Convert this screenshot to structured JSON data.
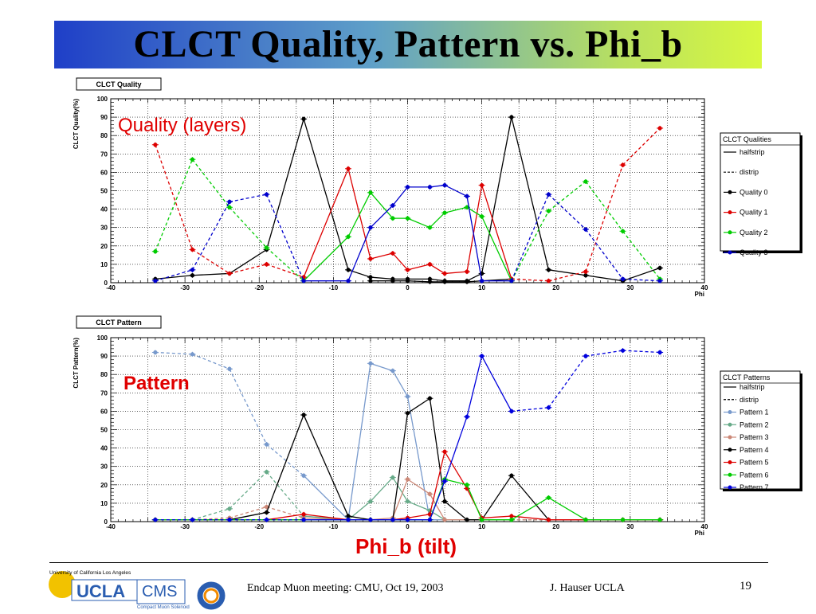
{
  "slide": {
    "title": "CLCT Quality, Pattern vs. Phi_b",
    "overlay_quality": "Quality (layers)",
    "overlay_pattern": "Pattern",
    "overlay_axis": "Phi_b (tilt)",
    "footer_meeting": "Endcap Muon meeting: CMU, Oct 19, 2003",
    "footer_author": "J. Hauser UCLA",
    "page_number": "19",
    "logo_univ": "University of California Los Angeles",
    "logo_ucla": "UCLA",
    "logo_cms": "CMS",
    "logo_cms_sub": "Compact Muon Solenoid",
    "overlay_color": "#e00000"
  },
  "chart_data": [
    {
      "type": "line",
      "title": "CLCT Quality",
      "xlabel": "Phi",
      "ylabel": "CLCT Quality(%)",
      "xlim": [
        -40,
        40
      ],
      "ylim": [
        0,
        100
      ],
      "xticks": [
        -40,
        -30,
        -20,
        -10,
        0,
        10,
        20,
        30,
        40
      ],
      "yticks": [
        0,
        10,
        20,
        30,
        40,
        50,
        60,
        70,
        80,
        90,
        100
      ],
      "grid": true,
      "legend_title": "CLCT Qualities",
      "legend_position": "right",
      "legend_style_entries": [
        {
          "label": "halfstrip",
          "dash": "solid"
        },
        {
          "label": "distrip",
          "dash": "dashed"
        }
      ],
      "series": [
        {
          "name": "Quality 0",
          "color": "#000000",
          "x": [
            -34,
            -29,
            -24,
            -19,
            -14,
            -8,
            -5,
            -2,
            0,
            3,
            5,
            8,
            10,
            14,
            19,
            24,
            29,
            34
          ],
          "y": [
            null,
            null,
            null,
            null,
            null,
            null,
            1,
            1,
            1,
            0.5,
            0.5,
            0.5,
            1,
            2,
            null,
            null,
            null,
            null
          ],
          "dash": "solid"
        },
        {
          "name": "Quality 0",
          "color": "#000000",
          "x": [
            -34,
            -29,
            -24,
            -19,
            -14,
            -8,
            -5,
            -2,
            0,
            3,
            5,
            8,
            10,
            14,
            19,
            24,
            29,
            34
          ],
          "y": [
            2,
            4,
            5,
            18,
            89,
            7,
            3,
            2,
            2,
            2,
            1,
            1,
            5,
            90,
            7,
            4,
            1,
            8
          ],
          "dash": "solid"
        },
        {
          "name": "Quality 1",
          "color": "#dd0000",
          "x": [
            -34,
            -29,
            -24,
            -19,
            -14,
            -8,
            -5,
            -2,
            0,
            3,
            5,
            8,
            10,
            14,
            19,
            24,
            29,
            34
          ],
          "y": [
            75,
            18,
            5,
            10,
            3,
            62,
            13,
            16,
            7,
            10,
            5,
            6,
            53,
            2,
            1,
            6,
            64,
            84
          ],
          "dash": "mixed"
        },
        {
          "name": "Quality 2",
          "color": "#00cc00",
          "x": [
            -34,
            -29,
            -24,
            -19,
            -14,
            -8,
            -5,
            -2,
            0,
            3,
            5,
            8,
            10,
            14,
            19,
            24,
            29,
            34
          ],
          "y": [
            17,
            67,
            41,
            19,
            1,
            25,
            49,
            35,
            35,
            30,
            38,
            41,
            36,
            1,
            39,
            55,
            28,
            2
          ],
          "dash": "mixed"
        },
        {
          "name": "Quality 3",
          "color": "#0000cc",
          "x": [
            -34,
            -29,
            -24,
            -19,
            -14,
            -8,
            -5,
            -2,
            0,
            3,
            5,
            8,
            10,
            14,
            19,
            24,
            29,
            34
          ],
          "y": [
            1,
            7,
            44,
            48,
            1,
            1,
            30,
            42,
            52,
            52,
            53,
            47,
            1,
            1,
            48,
            29,
            2,
            1
          ],
          "dash": "mixed"
        }
      ]
    },
    {
      "type": "line",
      "title": "CLCT Pattern",
      "xlabel": "Phi",
      "ylabel": "CLCT Pattern(%)",
      "xlim": [
        -40,
        40
      ],
      "ylim": [
        0,
        100
      ],
      "xticks": [
        -40,
        -30,
        -20,
        -10,
        0,
        10,
        20,
        30,
        40
      ],
      "yticks": [
        0,
        10,
        20,
        30,
        40,
        50,
        60,
        70,
        80,
        90,
        100
      ],
      "grid": true,
      "legend_title": "CLCT Patterns",
      "legend_position": "right",
      "legend_style_entries": [
        {
          "label": "halfstrip",
          "dash": "solid"
        },
        {
          "label": "distrip",
          "dash": "dashed"
        }
      ],
      "series": [
        {
          "name": "Pattern 1",
          "color": "#7799cc",
          "x": [
            -34,
            -29,
            -24,
            -19,
            -14,
            -8,
            -5,
            -2,
            0,
            3,
            5,
            8,
            10,
            14,
            19,
            24,
            29,
            34
          ],
          "y": [
            92,
            91,
            83,
            42,
            25,
            1,
            86,
            82,
            68,
            1,
            1,
            1,
            1,
            1,
            1,
            1,
            1,
            1
          ],
          "dash": "mixed"
        },
        {
          "name": "Pattern 2",
          "color": "#66aa88",
          "x": [
            -34,
            -29,
            -24,
            -19,
            -14,
            -8,
            -5,
            -2,
            0,
            3,
            5,
            8,
            10,
            14,
            19,
            24,
            29,
            34
          ],
          "y": [
            1,
            1,
            7,
            27,
            3,
            1,
            11,
            24,
            11,
            6,
            1,
            1,
            1,
            1,
            1,
            1,
            1,
            1
          ],
          "dash": "mixed"
        },
        {
          "name": "Pattern 3",
          "color": "#cc8877",
          "x": [
            -34,
            -29,
            -24,
            -19,
            -14,
            -8,
            -5,
            -2,
            0,
            3,
            5,
            8,
            10,
            14,
            19,
            24,
            29,
            34
          ],
          "y": [
            1,
            1,
            2,
            8,
            2,
            1,
            1,
            2,
            23,
            15,
            1,
            1,
            1,
            1,
            1,
            1,
            1,
            1
          ],
          "dash": "mixed"
        },
        {
          "name": "Pattern 4",
          "color": "#000000",
          "x": [
            -34,
            -29,
            -24,
            -19,
            -14,
            -8,
            -5,
            -2,
            0,
            3,
            5,
            8,
            10,
            14,
            19,
            24,
            29,
            34
          ],
          "y": [
            1,
            1,
            1,
            5,
            58,
            3,
            1,
            1,
            59,
            67,
            11,
            1,
            1,
            25,
            1,
            1,
            1,
            1
          ],
          "dash": "solid"
        },
        {
          "name": "Pattern 5",
          "color": "#dd0000",
          "x": [
            -34,
            -29,
            -24,
            -19,
            -14,
            -8,
            -5,
            -2,
            0,
            3,
            5,
            8,
            10,
            14,
            19,
            24,
            29,
            34
          ],
          "y": [
            1,
            1,
            1,
            1,
            4,
            1,
            1,
            1,
            2,
            4,
            38,
            18,
            2,
            3,
            1,
            1,
            1,
            1
          ],
          "dash": "solid"
        },
        {
          "name": "Pattern 6",
          "color": "#00cc00",
          "x": [
            -34,
            -29,
            -24,
            -19,
            -14,
            -8,
            -5,
            -2,
            0,
            3,
            5,
            8,
            10,
            14,
            19,
            24,
            29,
            34
          ],
          "y": [
            1,
            1,
            1,
            1,
            1,
            1,
            1,
            1,
            1,
            1,
            23,
            20,
            1,
            1,
            13,
            1,
            1,
            1
          ],
          "dash": "solid"
        },
        {
          "name": "Pattern 7",
          "color": "#0000dd",
          "x": [
            -34,
            -29,
            -24,
            -19,
            -14,
            -8,
            -5,
            -2,
            0,
            3,
            5,
            8,
            10,
            14,
            19,
            24,
            29,
            34
          ],
          "y": [
            1,
            1,
            1,
            1,
            1,
            1,
            1,
            1,
            1,
            1,
            22,
            57,
            90,
            60,
            62,
            90,
            93,
            92
          ],
          "dash": "mixed"
        }
      ]
    }
  ]
}
